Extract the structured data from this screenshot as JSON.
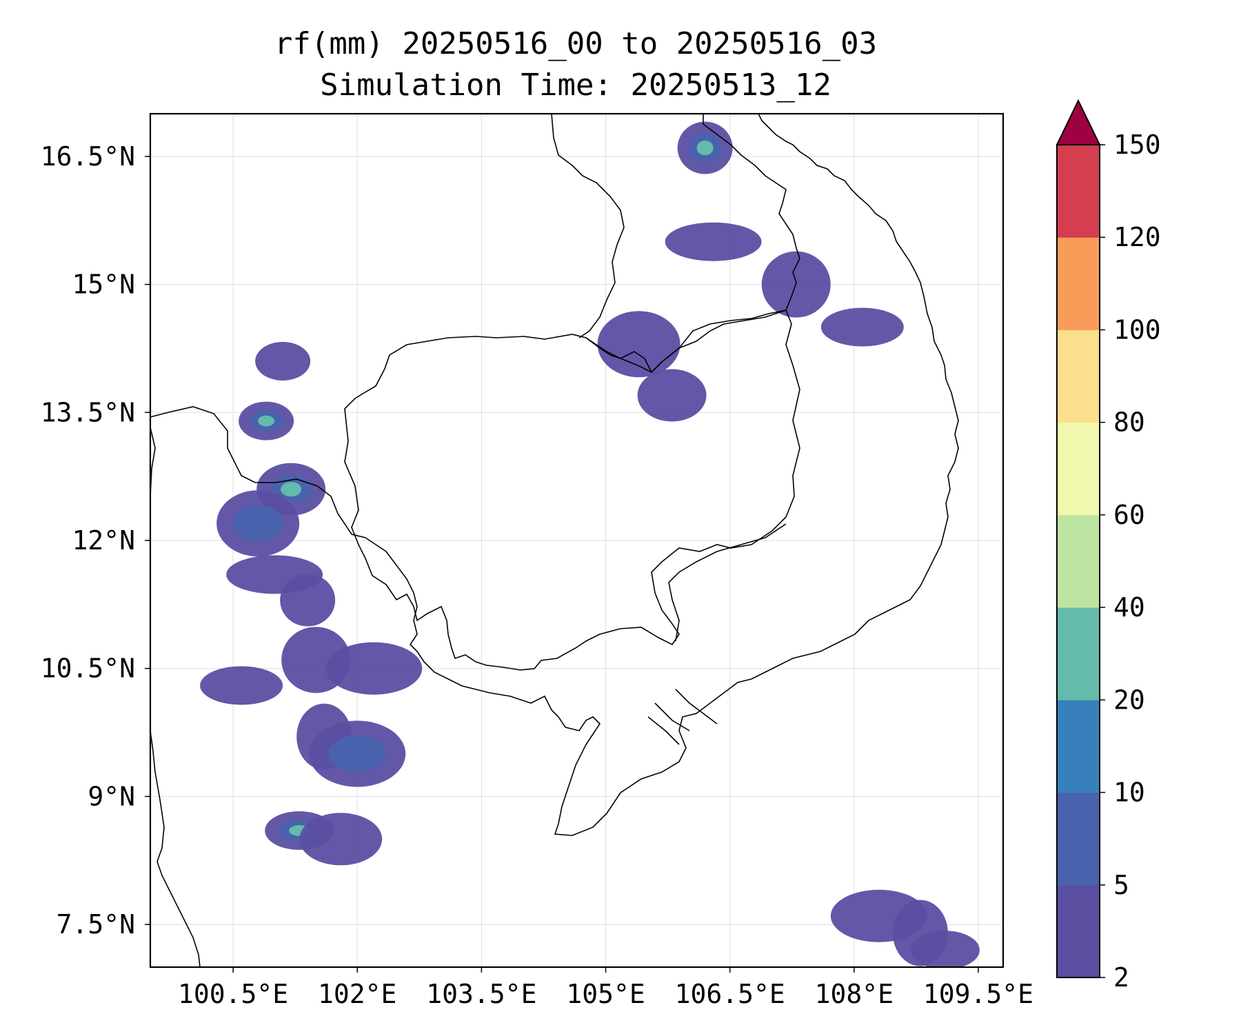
{
  "title": {
    "line1": "rf(mm) 20250516_00 to 20250516_03",
    "line2": "Simulation Time: 20250513_12"
  },
  "map": {
    "lon_range": [
      99.5,
      109.8
    ],
    "lat_range": [
      7.0,
      17.0
    ],
    "lon_ticks": [
      100.5,
      102,
      103.5,
      105,
      106.5,
      108,
      109.5
    ],
    "lon_tick_labels": [
      "100.5°E",
      "102°E",
      "103.5°E",
      "105°E",
      "106.5°E",
      "108°E",
      "109.5°E"
    ],
    "lat_ticks": [
      7.5,
      9,
      10.5,
      12,
      13.5,
      15,
      16.5
    ],
    "lat_tick_labels": [
      "7.5°N",
      "9°N",
      "10.5°N",
      "12°N",
      "13.5°N",
      "15°N",
      "16.5°N"
    ],
    "gridlines": true
  },
  "colorbar": {
    "levels": [
      2,
      5,
      10,
      20,
      40,
      60,
      80,
      100,
      120,
      150
    ],
    "level_labels": [
      "2",
      "5",
      "10",
      "20",
      "40",
      "60",
      "80",
      "100",
      "120",
      "150"
    ],
    "colors": [
      "#5b4fa2",
      "#4a62ad",
      "#3780bb",
      "#64bbab",
      "#bde4a0",
      "#f1f8ad",
      "#fbdf8c",
      "#f99c59",
      "#d43e4f"
    ],
    "extend_color": "#9e0142",
    "extend": "max"
  },
  "rain_cells": [
    {
      "lon": 100.9,
      "lat": 13.4,
      "level": 3
    },
    {
      "lon": 101.2,
      "lat": 12.6,
      "level": 3
    },
    {
      "lon": 100.8,
      "lat": 12.2,
      "level": 2
    },
    {
      "lon": 101.0,
      "lat": 11.6,
      "level": 1
    },
    {
      "lon": 101.4,
      "lat": 11.3,
      "level": 1
    },
    {
      "lon": 101.5,
      "lat": 10.6,
      "level": 1
    },
    {
      "lon": 100.6,
      "lat": 10.3,
      "level": 1
    },
    {
      "lon": 102.2,
      "lat": 10.5,
      "level": 1
    },
    {
      "lon": 101.6,
      "lat": 9.7,
      "level": 1
    },
    {
      "lon": 101.3,
      "lat": 8.6,
      "level": 3
    },
    {
      "lon": 101.8,
      "lat": 8.5,
      "level": 1
    },
    {
      "lon": 102.0,
      "lat": 9.5,
      "level": 2
    },
    {
      "lon": 101.1,
      "lat": 14.1,
      "level": 1
    },
    {
      "lon": 105.8,
      "lat": 13.7,
      "level": 1
    },
    {
      "lon": 105.4,
      "lat": 14.3,
      "level": 1
    },
    {
      "lon": 106.3,
      "lat": 15.5,
      "level": 1
    },
    {
      "lon": 106.2,
      "lat": 16.6,
      "level": 3
    },
    {
      "lon": 107.3,
      "lat": 15.0,
      "level": 1
    },
    {
      "lon": 108.1,
      "lat": 14.5,
      "level": 1
    },
    {
      "lon": 108.3,
      "lat": 7.6,
      "level": 1
    },
    {
      "lon": 108.8,
      "lat": 7.4,
      "level": 1
    },
    {
      "lon": 109.1,
      "lat": 7.2,
      "level": 1
    }
  ]
}
